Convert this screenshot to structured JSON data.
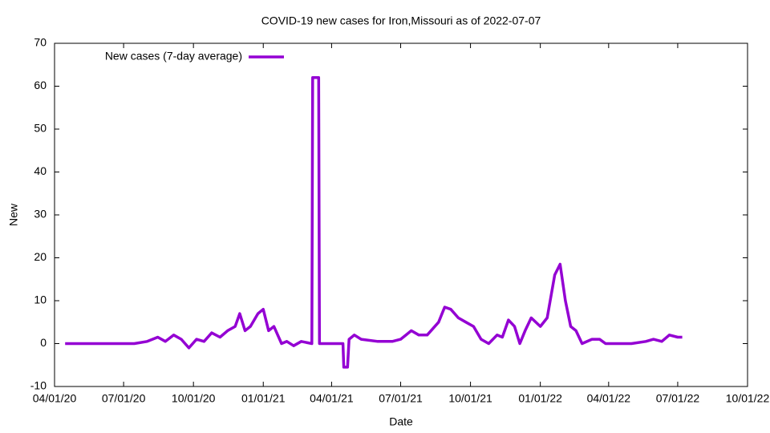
{
  "chart_data": {
    "type": "line",
    "title": "COVID-19 new cases for Iron,Missouri as of 2022-07-07",
    "x_label": "Date",
    "y_label": "New",
    "x": [
      "2020-04-15",
      "2020-05-15",
      "2020-06-15",
      "2020-07-15",
      "2020-08-01",
      "2020-08-15",
      "2020-08-25",
      "2020-09-05",
      "2020-09-15",
      "2020-09-25",
      "2020-10-05",
      "2020-10-15",
      "2020-10-25",
      "2020-11-05",
      "2020-11-15",
      "2020-11-25",
      "2020-12-01",
      "2020-12-08",
      "2020-12-15",
      "2020-12-25",
      "2021-01-01",
      "2021-01-08",
      "2021-01-15",
      "2021-01-25",
      "2021-02-01",
      "2021-02-10",
      "2021-02-20",
      "2021-03-06",
      "2021-03-07",
      "2021-03-15",
      "2021-03-16",
      "2021-04-01",
      "2021-04-16",
      "2021-04-17",
      "2021-04-22",
      "2021-04-24",
      "2021-05-01",
      "2021-05-10",
      "2021-06-01",
      "2021-06-20",
      "2021-07-01",
      "2021-07-15",
      "2021-07-25",
      "2021-08-05",
      "2021-08-20",
      "2021-08-28",
      "2021-09-05",
      "2021-09-15",
      "2021-09-25",
      "2021-10-05",
      "2021-10-15",
      "2021-10-25",
      "2021-11-05",
      "2021-11-12",
      "2021-11-20",
      "2021-11-28",
      "2021-12-05",
      "2021-12-12",
      "2021-12-20",
      "2022-01-01",
      "2022-01-10",
      "2022-01-20",
      "2022-01-27",
      "2022-02-03",
      "2022-02-10",
      "2022-02-17",
      "2022-02-25",
      "2022-03-10",
      "2022-03-20",
      "2022-03-28",
      "2022-04-15",
      "2022-05-01",
      "2022-05-20",
      "2022-05-30",
      "2022-06-10",
      "2022-06-20",
      "2022-07-01",
      "2022-07-07"
    ],
    "series": [
      {
        "name": "New cases (7-day average)",
        "color": "#9400d3",
        "values": [
          0,
          0,
          0,
          0,
          0.5,
          1.5,
          0.5,
          2,
          1,
          -1,
          1,
          0.5,
          2.5,
          1.5,
          3,
          4,
          7,
          3,
          4,
          7,
          8,
          3,
          4,
          0,
          0.5,
          -0.5,
          0.5,
          0,
          62,
          62,
          0,
          0,
          0,
          -5.5,
          -5.5,
          1,
          2,
          1,
          0.5,
          0.5,
          1,
          3,
          2,
          2,
          5,
          8.5,
          8,
          6,
          5,
          4,
          1,
          0,
          2,
          1.5,
          5.5,
          4,
          0,
          3,
          6,
          4,
          6,
          16,
          18.5,
          10,
          4,
          3,
          0,
          1,
          1,
          0,
          0,
          0,
          0.5,
          1,
          0.5,
          2,
          1.5,
          1.5
        ]
      }
    ],
    "xlim": [
      "2020-04-01",
      "2022-10-01"
    ],
    "xticks": [
      {
        "value": "2020-04-01",
        "label": "04/01/20"
      },
      {
        "value": "2020-07-01",
        "label": "07/01/20"
      },
      {
        "value": "2020-10-01",
        "label": "10/01/20"
      },
      {
        "value": "2021-01-01",
        "label": "01/01/21"
      },
      {
        "value": "2021-04-01",
        "label": "04/01/21"
      },
      {
        "value": "2021-07-01",
        "label": "07/01/21"
      },
      {
        "value": "2021-10-01",
        "label": "10/01/21"
      },
      {
        "value": "2022-01-01",
        "label": "01/01/22"
      },
      {
        "value": "2022-04-01",
        "label": "04/01/22"
      },
      {
        "value": "2022-07-01",
        "label": "07/01/22"
      },
      {
        "value": "2022-10-01",
        "label": "10/01/22"
      }
    ],
    "ylim": [
      -10,
      70
    ],
    "yticks": [
      -10,
      0,
      10,
      20,
      30,
      40,
      50,
      60,
      70
    ],
    "legend": "top-left"
  }
}
